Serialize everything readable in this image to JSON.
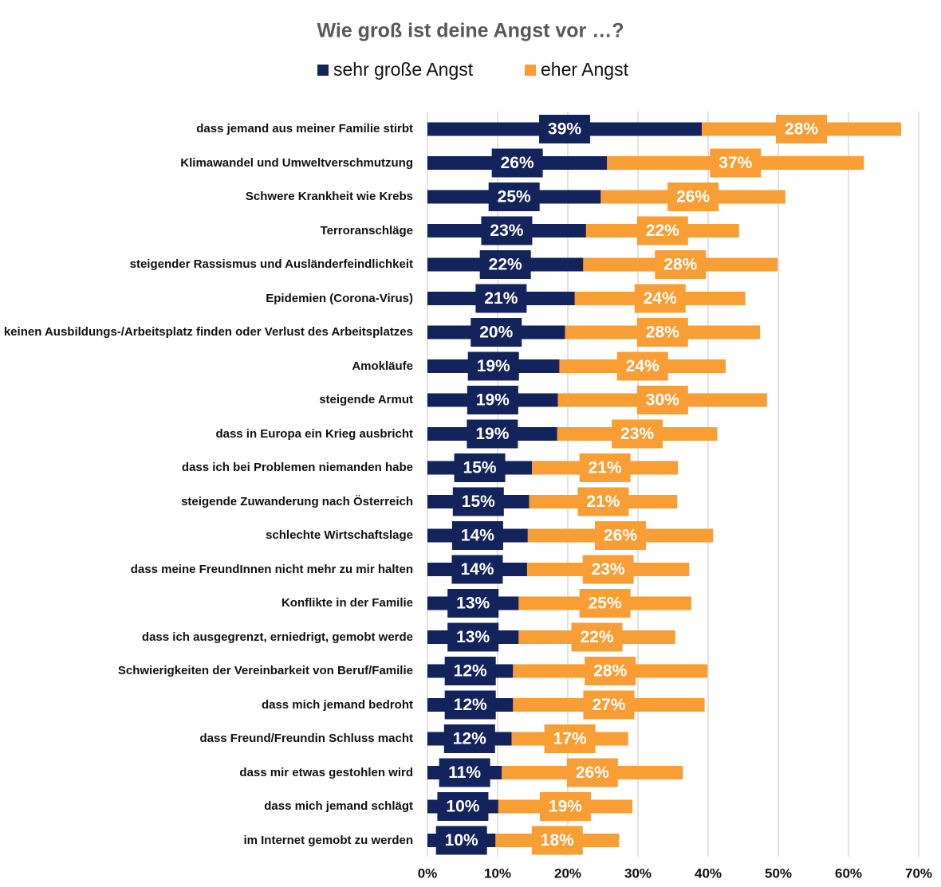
{
  "chart_data": {
    "type": "stacked_bar_horizontal",
    "title": "Wie groß ist deine Angst vor …?",
    "categories": [
      "dass jemand aus meiner Familie stirbt",
      "Klimawandel und Umweltverschmutzung",
      "Schwere Krankheit wie Krebs",
      "Terroranschläge",
      "steigender Rassismus und Ausländerfeindlichkeit",
      "Epidemien (Corona-Virus)",
      "keinen Ausbildungs-/Arbeitsplatz finden oder Verlust des Arbeitsplatzes",
      "Amokläufe",
      "steigende Armut",
      "dass in Europa ein Krieg ausbricht",
      "dass ich bei Problemen niemanden habe",
      "steigende Zuwanderung nach Österreich",
      "schlechte Wirtschaftslage",
      "dass meine FreundInnen nicht mehr zu mir halten",
      "Konflikte in der Familie",
      "dass ich ausgegrenzt, erniedrigt, gemobt werde",
      "Schwierigkeiten der Vereinbarkeit von Beruf/Familie",
      "dass mich jemand bedroht",
      "dass Freund/Freundin Schluss macht",
      "dass mir etwas gestohlen wird",
      "dass mich jemand schlägt",
      "im Internet gemobt zu werden"
    ],
    "series": [
      {
        "name": "sehr große Angst",
        "color": "#13235b",
        "values": [
          39.1,
          25.6,
          24.7,
          22.6,
          22.2,
          21.0,
          19.6,
          18.8,
          18.6,
          18.5,
          14.9,
          14.5,
          14.3,
          14.2,
          13.0,
          13.0,
          12.2,
          12.2,
          12.0,
          10.6,
          10.1,
          9.7
        ],
        "value_labels": [
          "39%",
          "26%",
          "25%",
          "23%",
          "22%",
          "21%",
          "20%",
          "19%",
          "19%",
          "19%",
          "15%",
          "15%",
          "14%",
          "14%",
          "13%",
          "13%",
          "12%",
          "12%",
          "12%",
          "11%",
          "10%",
          "10%"
        ]
      },
      {
        "name": "eher Angst",
        "color": "#f99d35",
        "values": [
          28.4,
          36.6,
          26.3,
          21.8,
          27.7,
          24.3,
          27.8,
          23.7,
          29.8,
          22.8,
          20.8,
          21.1,
          26.4,
          23.1,
          24.6,
          22.3,
          27.7,
          27.3,
          16.6,
          25.8,
          19.1,
          17.6
        ],
        "value_labels": [
          "28%",
          "37%",
          "26%",
          "22%",
          "28%",
          "24%",
          "28%",
          "24%",
          "30%",
          "23%",
          "21%",
          "21%",
          "26%",
          "23%",
          "25%",
          "22%",
          "28%",
          "27%",
          "17%",
          "26%",
          "19%",
          "18%"
        ]
      }
    ],
    "xlim": [
      0,
      70
    ],
    "xticks": [
      {
        "value": 0,
        "label": "0%"
      },
      {
        "value": 10,
        "label": "10%"
      },
      {
        "value": 20,
        "label": "20%"
      },
      {
        "value": 30,
        "label": "30%"
      },
      {
        "value": 40,
        "label": "40%"
      },
      {
        "value": 50,
        "label": "50%"
      },
      {
        "value": 60,
        "label": "60%"
      },
      {
        "value": 70,
        "label": "70%"
      }
    ],
    "grid": true,
    "legend": "top"
  }
}
